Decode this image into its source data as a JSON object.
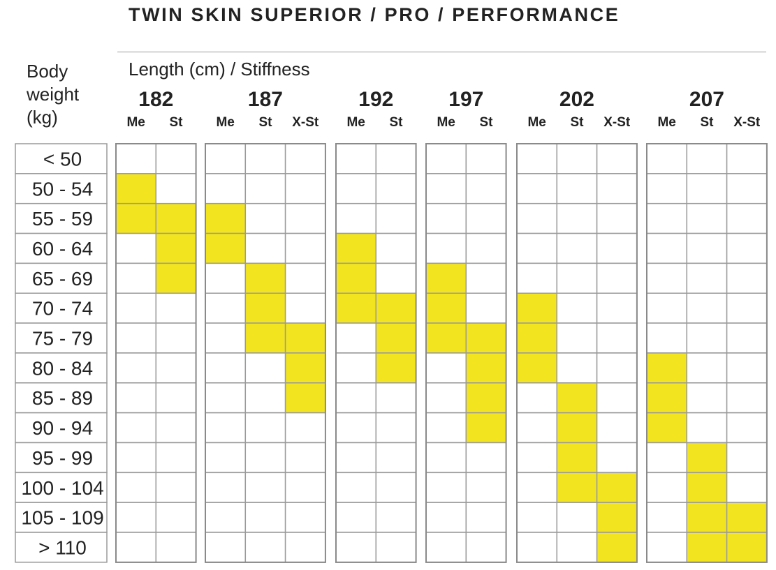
{
  "title": "TWIN SKIN SUPERIOR / PRO / PERFORMANCE",
  "row_header": [
    "Body",
    "weight",
    "(kg)"
  ],
  "column_header": "Length (cm) / Stiffness",
  "colors": {
    "highlight": "#f2e41f",
    "grid": "#9a9a9a",
    "text": "#222222"
  },
  "chart_data": {
    "type": "table",
    "rows": [
      "< 50",
      "50 - 54",
      "55 - 59",
      "60 - 64",
      "65 - 69",
      "70 - 74",
      "75 - 79",
      "80 - 84",
      "85 - 89",
      "90 - 94",
      "95 - 99",
      "100 - 104",
      "105 - 109",
      "> 110"
    ],
    "groups": [
      {
        "length": "182",
        "stiffness": [
          "Me",
          "St"
        ],
        "cells": [
          [
            1,
            2
          ],
          [
            2,
            3,
            4
          ]
        ]
      },
      {
        "length": "187",
        "stiffness": [
          "Me",
          "St",
          "X-St"
        ],
        "cells": [
          [
            2,
            3
          ],
          [
            4,
            5,
            6
          ],
          [
            6,
            7,
            8
          ]
        ]
      },
      {
        "length": "192",
        "stiffness": [
          "Me",
          "St"
        ],
        "cells": [
          [
            3,
            4,
            5
          ],
          [
            5,
            6,
            7
          ]
        ]
      },
      {
        "length": "197",
        "stiffness": [
          "Me",
          "St"
        ],
        "cells": [
          [
            4,
            5,
            6
          ],
          [
            6,
            7,
            8,
            9
          ]
        ]
      },
      {
        "length": "202",
        "stiffness": [
          "Me",
          "St",
          "X-St"
        ],
        "cells": [
          [
            5,
            6,
            7
          ],
          [
            8,
            9,
            10,
            11
          ],
          [
            11,
            12,
            13
          ]
        ]
      },
      {
        "length": "207",
        "stiffness": [
          "Me",
          "St",
          "X-St"
        ],
        "cells": [
          [
            7,
            8,
            9
          ],
          [
            10,
            11,
            12,
            13
          ],
          [
            12,
            13
          ]
        ]
      }
    ]
  }
}
